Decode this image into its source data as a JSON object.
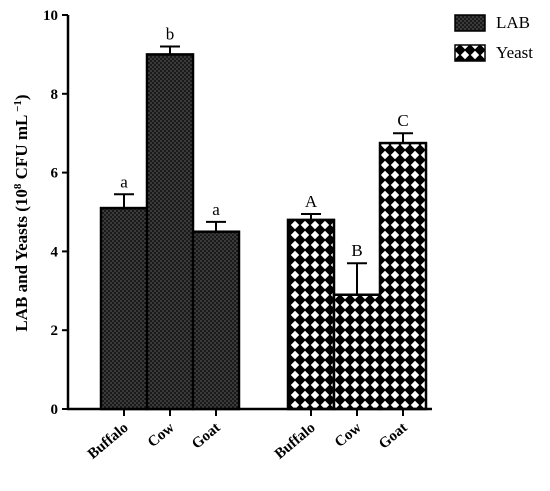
{
  "chart_data": {
    "type": "bar",
    "ylabel_main": "LAB and Yeasts (10",
    "ylabel_sup1": "8",
    "ylabel_mid": " CFU mL",
    "ylabel_sup2": " −1",
    "ylabel_end": ")",
    "ylim": [
      0,
      10
    ],
    "yticks": [
      "0",
      "2",
      "4",
      "6",
      "8",
      "10"
    ],
    "grid": false,
    "legend_position": "top-right",
    "series": [
      {
        "name": "LAB",
        "pattern": "dots",
        "categories": [
          "Buffalo",
          "Cow",
          "Goat"
        ],
        "values": [
          5.1,
          9.0,
          4.5
        ],
        "errors": [
          0.35,
          0.2,
          0.25
        ],
        "significance": [
          "a",
          "b",
          "a"
        ]
      },
      {
        "name": "Yeast",
        "pattern": "diamonds",
        "categories": [
          "Buffalo",
          "Cow",
          "Goat"
        ],
        "values": [
          4.8,
          2.9,
          6.75
        ],
        "errors": [
          0.15,
          0.8,
          0.25
        ],
        "significance": [
          "A",
          "B",
          "C"
        ]
      }
    ]
  }
}
